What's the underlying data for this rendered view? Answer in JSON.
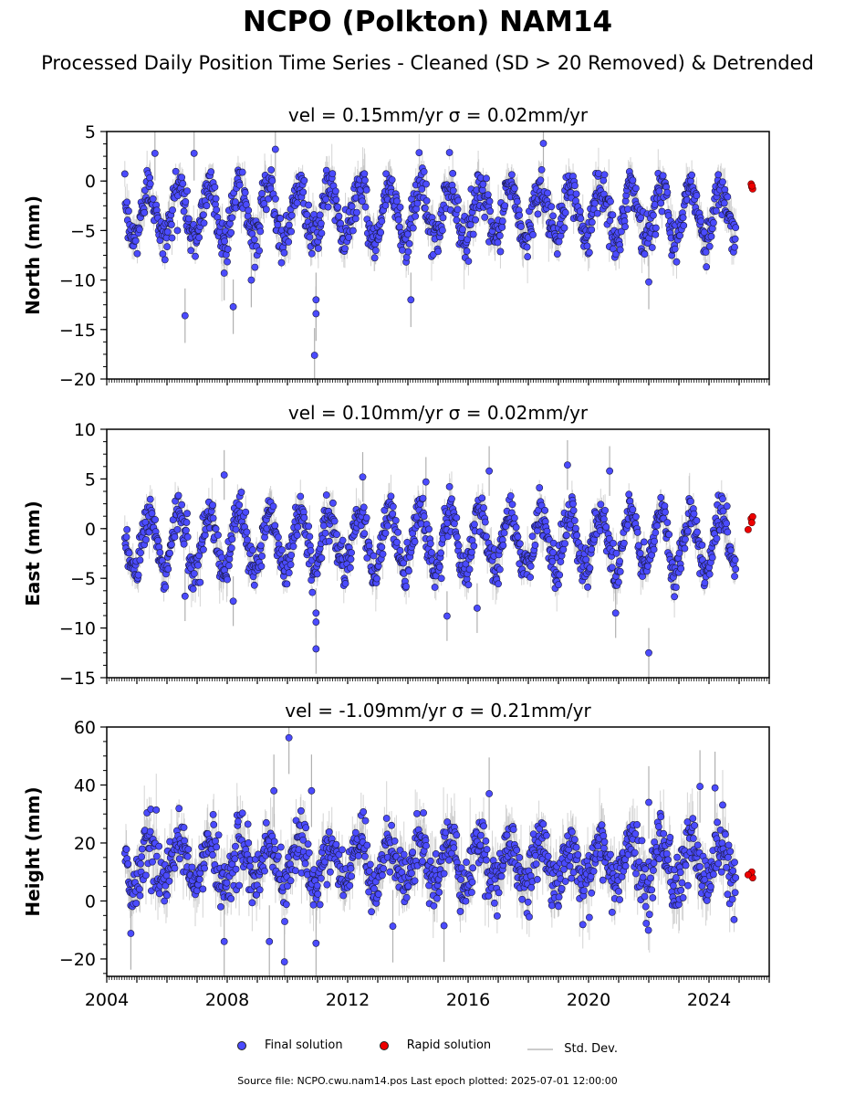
{
  "title": "NCPO (Polkton) NAM14",
  "subtitle": "Processed Daily Position Time Series - Cleaned (SD > 20 Removed) & Detrended",
  "legend": {
    "final": "Final solution",
    "rapid": "Rapid solution",
    "std": "Std. Dev."
  },
  "footer": "Source file: NCPO.cwu.nam14.pos  Last epoch plotted: 2025-07-01 12:00:00",
  "colors": {
    "final": "#4b4bff",
    "rapid": "#ee0000",
    "std": "#b0b0b0"
  },
  "chart_data": [
    {
      "type": "scatter",
      "title": "vel = 0.15mm/yr   σ = 0.02mm/yr",
      "ylabel": "North (mm)",
      "xlim": [
        2004,
        2026
      ],
      "ylim": [
        -20,
        5
      ],
      "yticks": [
        5,
        0,
        -5,
        -10,
        -15,
        -20
      ],
      "xticks": [
        2004,
        2008,
        2012,
        2016,
        2020,
        2024
      ],
      "series": [
        {
          "name": "Final solution",
          "description": "daily detrended positions 2004.6–2024.9, seasonal cycle around -3 mm, amplitude about ±3 mm",
          "start": 2004.6,
          "end": 2024.9,
          "mean": -3.2,
          "amplitude": 2.8,
          "noise": 1.1,
          "outliers": [
            [
              2006.6,
              -13.6
            ],
            [
              2008.2,
              -12.7
            ],
            [
              2007.9,
              -9.3
            ],
            [
              2008.8,
              -10.0
            ],
            [
              2010.9,
              -17.6
            ],
            [
              2010.95,
              -13.4
            ],
            [
              2010.95,
              -12.0
            ],
            [
              2014.1,
              -12.0
            ],
            [
              2022.0,
              -10.2
            ],
            [
              2018.5,
              3.8
            ],
            [
              2009.6,
              3.2
            ],
            [
              2005.6,
              2.8
            ],
            [
              2006.9,
              2.8
            ]
          ]
        },
        {
          "name": "Rapid solution",
          "points": [
            [
              2025.4,
              -0.3
            ],
            [
              2025.42,
              -0.6
            ],
            [
              2025.45,
              -0.8
            ],
            [
              2025.43,
              -0.5
            ]
          ]
        }
      ]
    },
    {
      "type": "scatter",
      "title": "vel = 0.10mm/yr   σ = 0.02mm/yr",
      "ylabel": "East (mm)",
      "xlim": [
        2004,
        2026
      ],
      "ylim": [
        -15,
        10
      ],
      "yticks": [
        10,
        5,
        0,
        -5,
        -10,
        -15
      ],
      "xticks": [
        2004,
        2008,
        2012,
        2016,
        2020,
        2024
      ],
      "series": [
        {
          "name": "Final solution",
          "description": "daily detrended positions 2004.6–2024.9, seasonal cycle around -1.5 mm, amplitude about ±3 mm",
          "start": 2004.6,
          "end": 2024.9,
          "mean": -1.3,
          "amplitude": 3.0,
          "noise": 1.0,
          "outliers": [
            [
              2006.6,
              -6.8
            ],
            [
              2008.2,
              -7.3
            ],
            [
              2010.95,
              -8.5
            ],
            [
              2010.95,
              -9.4
            ],
            [
              2010.95,
              -12.1
            ],
            [
              2015.3,
              -8.8
            ],
            [
              2016.3,
              -8.0
            ],
            [
              2020.9,
              -8.5
            ],
            [
              2022.0,
              -12.5
            ],
            [
              2007.9,
              5.4
            ],
            [
              2019.3,
              6.4
            ],
            [
              2020.7,
              5.8
            ],
            [
              2016.7,
              5.8
            ],
            [
              2014.6,
              4.7
            ],
            [
              2012.5,
              5.2
            ]
          ]
        },
        {
          "name": "Rapid solution",
          "points": [
            [
              2025.4,
              1.0
            ],
            [
              2025.45,
              1.2
            ],
            [
              2025.42,
              0.6
            ],
            [
              2025.3,
              -0.1
            ]
          ]
        }
      ]
    },
    {
      "type": "scatter",
      "title": "vel = -1.09mm/yr   σ = 0.21mm/yr",
      "ylabel": "Height (mm)",
      "xlim": [
        2004,
        2026
      ],
      "ylim": [
        -26,
        60
      ],
      "yticks": [
        60,
        40,
        20,
        0,
        -20
      ],
      "xticks": [
        2004,
        2008,
        2012,
        2016,
        2020,
        2024
      ],
      "xticklabels": [
        "2004",
        "2008",
        "2012",
        "2016",
        "2020",
        "2024"
      ],
      "series": [
        {
          "name": "Final solution",
          "description": "daily detrended heights 2004.6–2024.9, centred near 13 mm, annual amplitude about ±8 mm with ±5 mm scatter",
          "start": 2004.6,
          "end": 2024.9,
          "mean": 13.0,
          "amplitude": 7.5,
          "noise": 5.0,
          "outliers": [
            [
              2010.05,
              56.3
            ],
            [
              2009.55,
              38.0
            ],
            [
              2010.8,
              38.0
            ],
            [
              2023.7,
              39.5
            ],
            [
              2024.2,
              39.0
            ],
            [
              2016.7,
              37.0
            ],
            [
              2009.9,
              -21.0
            ],
            [
              2009.4,
              -14.0
            ],
            [
              2007.9,
              -14.0
            ],
            [
              2010.95,
              -14.6
            ],
            [
              2004.8,
              -11.2
            ],
            [
              2013.5,
              -8.7
            ],
            [
              2015.2,
              -8.5
            ],
            [
              2022.0,
              34.0
            ]
          ]
        },
        {
          "name": "Rapid solution",
          "points": [
            [
              2025.4,
              9.5
            ],
            [
              2025.45,
              8.0
            ],
            [
              2025.42,
              10.0
            ],
            [
              2025.3,
              9.0
            ]
          ]
        }
      ]
    }
  ]
}
